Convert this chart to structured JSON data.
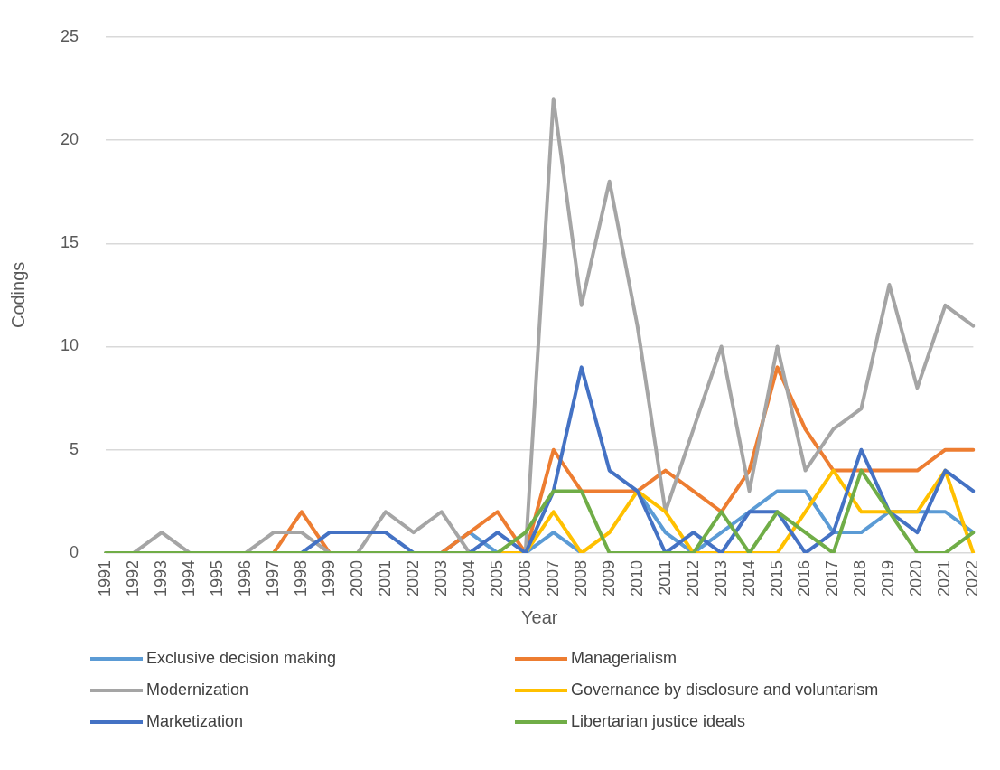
{
  "chart_data": {
    "type": "line",
    "xlabel": "Year",
    "ylabel": "Codings",
    "categories": [
      "1991",
      "1992",
      "1993",
      "1994",
      "1995",
      "1996",
      "1997",
      "1998",
      "1999",
      "2000",
      "2001",
      "2002",
      "2003",
      "2004",
      "2005",
      "2006",
      "2007",
      "2008",
      "2009",
      "2010",
      "2011",
      "2012",
      "2013",
      "2014",
      "2015",
      "2016",
      "2017",
      "2018",
      "2019",
      "2020",
      "2021",
      "2022"
    ],
    "ylim": [
      0,
      25
    ],
    "yticks": [
      0,
      5,
      10,
      15,
      20,
      25
    ],
    "grid": "y",
    "legend": "bottom",
    "marker": "none",
    "series": [
      {
        "name": "Exclusive decision making",
        "color": "#5b9bd5",
        "values": [
          null,
          null,
          null,
          null,
          null,
          null,
          0,
          0,
          0,
          0,
          0,
          0,
          0,
          1,
          0,
          0,
          1,
          0,
          null,
          3,
          1,
          0,
          1,
          2,
          3,
          3,
          1,
          1,
          2,
          2,
          2,
          1
        ]
      },
      {
        "name": "Managerialism",
        "color": "#ed7d31",
        "values": [
          null,
          null,
          null,
          null,
          null,
          0,
          0,
          2,
          0,
          0,
          0,
          0,
          0,
          1,
          2,
          0,
          5,
          3,
          3,
          3,
          4,
          3,
          2,
          4,
          9,
          6,
          4,
          4,
          4,
          4,
          5,
          5
        ]
      },
      {
        "name": "Modernization",
        "color": "#a5a5a5",
        "values": [
          0,
          0,
          1,
          0,
          0,
          0,
          1,
          1,
          0,
          0,
          2,
          1,
          2,
          0,
          0,
          0,
          22,
          12,
          18,
          11,
          2,
          6,
          10,
          3,
          10,
          4,
          6,
          7,
          13,
          8,
          12,
          11
        ]
      },
      {
        "name": "Governance by disclosure and voluntarism",
        "color": "#ffc000",
        "values": [
          null,
          null,
          null,
          null,
          null,
          null,
          null,
          null,
          null,
          null,
          null,
          null,
          null,
          0,
          0,
          0,
          2,
          0,
          1,
          3,
          2,
          0,
          0,
          0,
          0,
          2,
          4,
          2,
          2,
          2,
          4,
          0
        ]
      },
      {
        "name": "Marketization",
        "color": "#4472c4",
        "values": [
          null,
          null,
          null,
          null,
          null,
          null,
          0,
          0,
          1,
          1,
          1,
          0,
          0,
          0,
          1,
          0,
          3,
          9,
          4,
          3,
          0,
          1,
          0,
          2,
          2,
          0,
          1,
          5,
          2,
          1,
          4,
          3
        ]
      },
      {
        "name": "Libertarian justice ideals",
        "color": "#70ad47",
        "values": [
          0,
          0,
          0,
          0,
          0,
          0,
          0,
          0,
          0,
          0,
          0,
          0,
          0,
          0,
          0,
          1,
          3,
          3,
          0,
          0,
          0,
          0,
          2,
          0,
          2,
          1,
          0,
          4,
          2,
          0,
          0,
          1
        ]
      }
    ]
  }
}
